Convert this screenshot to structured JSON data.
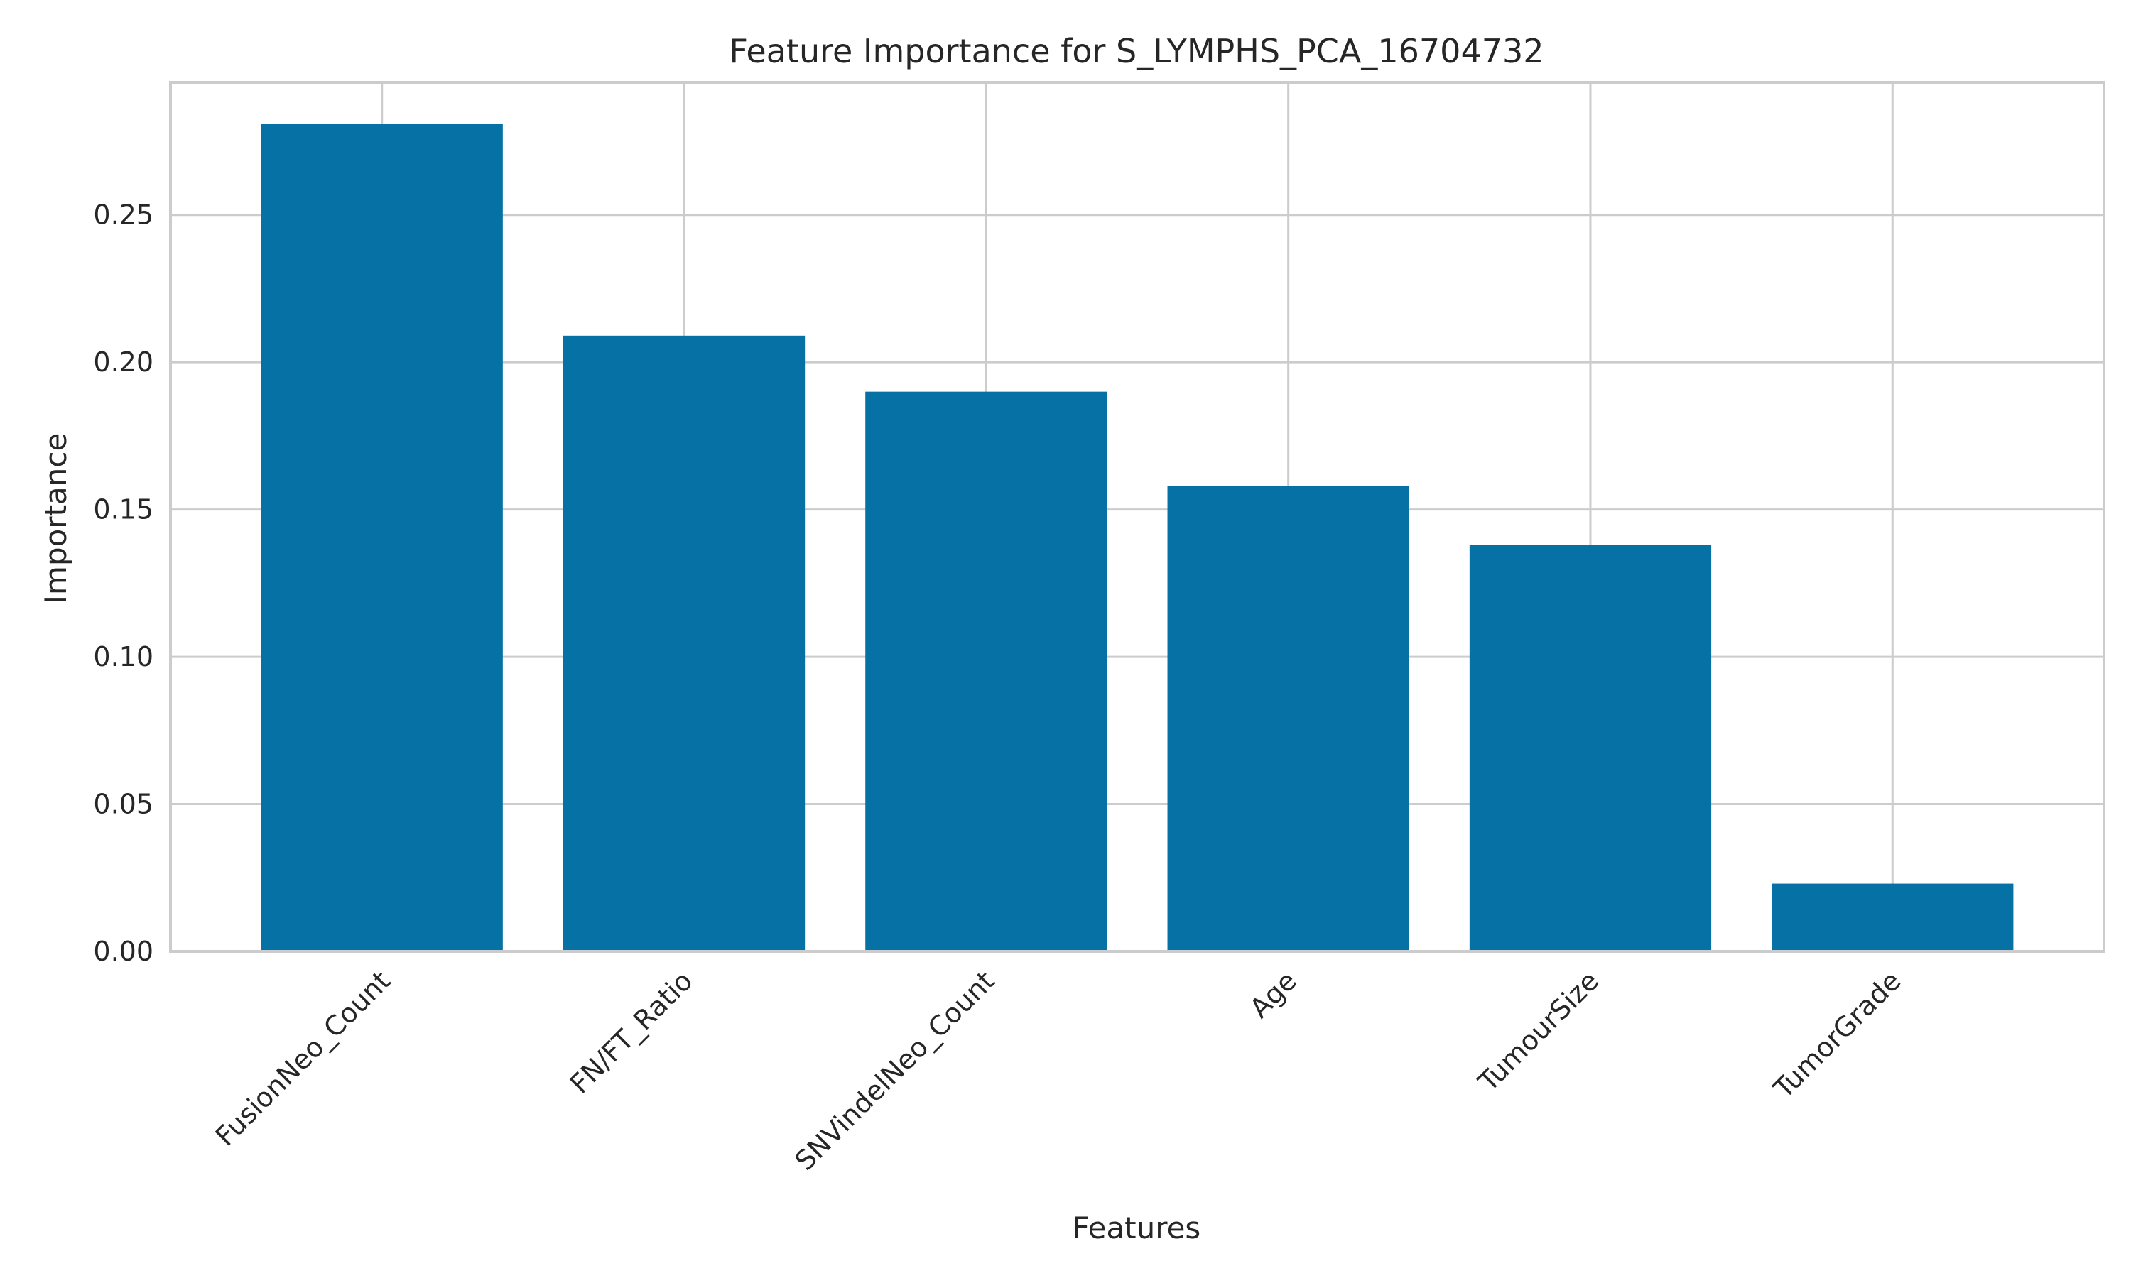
{
  "chart_data": {
    "type": "bar",
    "title": "Feature Importance for S_LYMPHS_PCA_16704732",
    "xlabel": "Features",
    "ylabel": "Importance",
    "categories": [
      "FusionNeo_Count",
      "FN/FT_Ratio",
      "SNVindelNeo_Count",
      "Age",
      "TumourSize",
      "TumorGrade"
    ],
    "values": [
      0.281,
      0.209,
      0.19,
      0.158,
      0.138,
      0.023
    ],
    "ylim": [
      0.0,
      0.295
    ],
    "yticks": [
      "0.00",
      "0.05",
      "0.10",
      "0.15",
      "0.20",
      "0.25"
    ],
    "grid": true,
    "colors": {
      "bar": "#0571a4",
      "grid": "#cccccc",
      "axis": "#cccccc",
      "text": "#262626"
    }
  }
}
